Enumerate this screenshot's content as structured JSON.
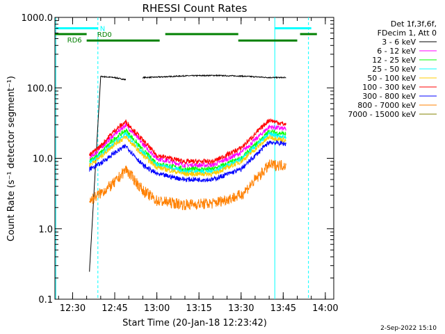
{
  "chart_data": {
    "type": "line",
    "title": "RHESSI Count Rates",
    "xlabel": "Start Time (20-Jan-18 12:23:42)",
    "ylabel": "Count Rate (s⁻¹ detector segment⁻¹)",
    "y_scale": "log",
    "ylim": [
      0.1,
      1000
    ],
    "xlim": [
      "12:23:42",
      "14:03:00"
    ],
    "x_ticks": [
      "12:30",
      "12:45",
      "13:00",
      "13:15",
      "13:30",
      "13:45",
      "14:00"
    ],
    "y_ticks": [
      "0.1",
      "1.0",
      "10.0",
      "100.0",
      "1000.0"
    ],
    "grid": false,
    "legend_position": "right",
    "legend_header": [
      "Det 1f,3f,6f,",
      "FDecim 1, Att 0"
    ],
    "series": [
      {
        "name": "3 - 6 keV",
        "color": "#000000",
        "x": [
          "12:36",
          "12:40",
          "12:45",
          "12:49",
          "12:52",
          "12:55",
          "13:00",
          "13:10",
          "13:20",
          "13:30",
          "13:40",
          "13:46"
        ],
        "values": [
          0.25,
          145,
          140,
          130,
          null,
          140,
          142,
          148,
          150,
          147,
          140,
          140
        ]
      },
      {
        "name": "6 - 12 keV",
        "color": "#ff00ff",
        "x": [
          "12:36",
          "12:40",
          "12:45",
          "12:49",
          "12:55",
          "13:00",
          "13:10",
          "13:20",
          "13:30",
          "13:40",
          "13:46"
        ],
        "values": [
          10,
          14,
          22,
          30,
          16,
          10,
          8,
          8,
          12,
          28,
          26
        ]
      },
      {
        "name": "12 - 25 keV",
        "color": "#00ff00",
        "x": [
          "12:36",
          "12:40",
          "12:45",
          "12:49",
          "12:55",
          "13:00",
          "13:10",
          "13:20",
          "13:30",
          "13:40",
          "13:46"
        ],
        "values": [
          9,
          12,
          19,
          25,
          13,
          8.5,
          7,
          7,
          10,
          24,
          22
        ]
      },
      {
        "name": "25 - 50 keV",
        "color": "#00ffff",
        "x": [
          "12:36",
          "12:40",
          "12:45",
          "12:49",
          "12:55",
          "13:00",
          "13:10",
          "13:20",
          "13:30",
          "13:40",
          "13:46"
        ],
        "values": [
          8.5,
          11,
          17,
          22,
          12,
          8,
          6.5,
          6.5,
          9.5,
          22,
          20
        ]
      },
      {
        "name": "50 - 100 keV",
        "color": "#ffcc00",
        "x": [
          "12:36",
          "12:40",
          "12:45",
          "12:49",
          "12:55",
          "13:00",
          "13:10",
          "13:20",
          "13:30",
          "13:40",
          "13:46"
        ],
        "values": [
          8,
          10.5,
          16,
          20,
          11,
          7.5,
          6,
          6,
          9,
          20,
          18
        ]
      },
      {
        "name": "100 - 300 keV",
        "color": "#ff0000",
        "x": [
          "12:36",
          "12:40",
          "12:45",
          "12:49",
          "12:55",
          "13:00",
          "13:10",
          "13:20",
          "13:30",
          "13:40",
          "13:46"
        ],
        "values": [
          11,
          15,
          25,
          33,
          18,
          11,
          9,
          9,
          14,
          35,
          30
        ]
      },
      {
        "name": "300 - 800 keV",
        "color": "#0000ff",
        "x": [
          "12:36",
          "12:40",
          "12:45",
          "12:49",
          "12:55",
          "13:00",
          "13:10",
          "13:20",
          "13:30",
          "13:40",
          "13:46"
        ],
        "values": [
          7,
          8.5,
          12,
          15,
          8,
          6,
          5,
          5,
          7,
          17,
          16
        ]
      },
      {
        "name": "800 - 7000 keV",
        "color": "#ff8000",
        "x": [
          "12:36",
          "12:40",
          "12:45",
          "12:49",
          "12:55",
          "13:00",
          "13:10",
          "13:20",
          "13:30",
          "13:40",
          "13:46"
        ],
        "values": [
          2.5,
          3.2,
          4.5,
          7,
          3.5,
          2.5,
          2.2,
          2.3,
          3,
          8,
          8
        ]
      },
      {
        "name": "7000 - 15000 keV",
        "color": "#808000",
        "x": [],
        "values": []
      }
    ],
    "annotations": [
      {
        "text": "N",
        "color": "#00ffff"
      },
      {
        "text": "RD0",
        "color": "#008000"
      },
      {
        "text": "RD6",
        "color": "#008000"
      }
    ],
    "vertical_markers": [
      {
        "time": "12:24",
        "color": "#00ffff",
        "style": "solid"
      },
      {
        "time": "12:39",
        "color": "#00ffff",
        "style": "dashed"
      },
      {
        "time": "13:42",
        "color": "#00ffff",
        "style": "solid"
      },
      {
        "time": "13:54",
        "color": "#00ffff",
        "style": "dashed"
      }
    ],
    "state_bars": [
      {
        "label": "N",
        "color": "#00ffff",
        "level": 700,
        "start": "12:23:42",
        "end": "12:39"
      },
      {
        "label": "N",
        "color": "#00ffff",
        "level": 700,
        "start": "13:42",
        "end": "13:55"
      },
      {
        "label": "RD0",
        "color": "#008000",
        "level": 580,
        "start": "12:23:42",
        "end": "12:35"
      },
      {
        "label": "RD6",
        "color": "#008000",
        "level": 470,
        "start": "12:35",
        "end": "13:01"
      },
      {
        "label": "RD0",
        "color": "#008000",
        "level": 580,
        "start": "13:03",
        "end": "13:29"
      },
      {
        "label": "RD6",
        "color": "#008000",
        "level": 470,
        "start": "13:29",
        "end": "13:50"
      },
      {
        "label": "RD0",
        "color": "#008000",
        "level": 580,
        "start": "13:51",
        "end": "13:57"
      }
    ],
    "footer": "2-Sep-2022 15:10"
  }
}
